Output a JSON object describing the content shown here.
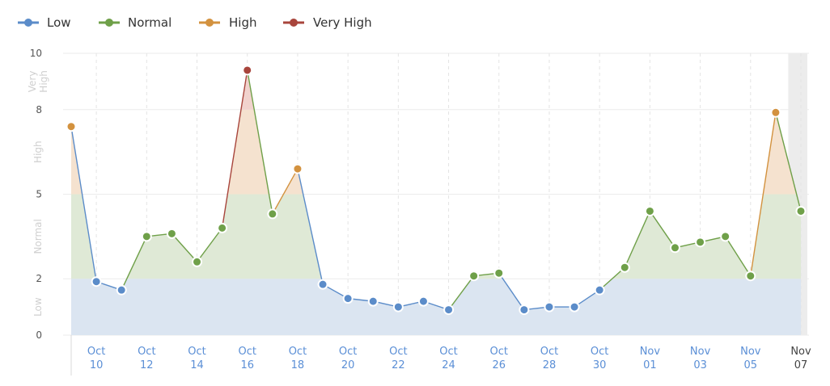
{
  "legend": [
    {
      "label": "Low",
      "color": "#5b8cc9"
    },
    {
      "label": "Normal",
      "color": "#6fa049"
    },
    {
      "label": "High",
      "color": "#d3923f"
    },
    {
      "label": "Very High",
      "color": "#a8453c"
    }
  ],
  "chart_data": {
    "type": "area",
    "ylim": [
      0,
      10
    ],
    "y_ticks": [
      "0",
      "2",
      "5",
      "8",
      "10"
    ],
    "bands": [
      {
        "name": "Low",
        "from": 0,
        "to": 2,
        "fill": "#dbe5f1"
      },
      {
        "name": "Normal",
        "from": 2,
        "to": 5,
        "fill": "#dfe9d6"
      },
      {
        "name": "High",
        "from": 5,
        "to": 8,
        "fill": "#f5e2cf"
      },
      {
        "name": "Very High",
        "from": 8,
        "to": 10,
        "fill": "#f1d2cd"
      }
    ],
    "band_labels": [
      "Low",
      "Normal",
      "High",
      "Very High"
    ],
    "x_ticks": [
      {
        "m": "Oct",
        "d": "10"
      },
      {
        "m": "Oct",
        "d": "12"
      },
      {
        "m": "Oct",
        "d": "14"
      },
      {
        "m": "Oct",
        "d": "16"
      },
      {
        "m": "Oct",
        "d": "18"
      },
      {
        "m": "Oct",
        "d": "20"
      },
      {
        "m": "Oct",
        "d": "22"
      },
      {
        "m": "Oct",
        "d": "24"
      },
      {
        "m": "Oct",
        "d": "26"
      },
      {
        "m": "Oct",
        "d": "28"
      },
      {
        "m": "Oct",
        "d": "30"
      },
      {
        "m": "Nov",
        "d": "01"
      },
      {
        "m": "Nov",
        "d": "03"
      },
      {
        "m": "Nov",
        "d": "05"
      },
      {
        "m": "Nov",
        "d": "07"
      }
    ],
    "x_start": "Oct 09",
    "x_end": "Nov 07",
    "highlighted_tick": "Nov 07",
    "highlight_region": [
      "Nov 06",
      "Nov 07"
    ],
    "points": [
      {
        "date": "Oct 09",
        "value": 7.4,
        "level": "High"
      },
      {
        "date": "Oct 10",
        "value": 1.9,
        "level": "Low"
      },
      {
        "date": "Oct 11",
        "value": 1.6,
        "level": "Low"
      },
      {
        "date": "Oct 12",
        "value": 3.5,
        "level": "Normal"
      },
      {
        "date": "Oct 13",
        "value": 3.6,
        "level": "Normal"
      },
      {
        "date": "Oct 14",
        "value": 2.6,
        "level": "Normal"
      },
      {
        "date": "Oct 15",
        "value": 3.8,
        "level": "Normal"
      },
      {
        "date": "Oct 16",
        "value": 9.4,
        "level": "Very High"
      },
      {
        "date": "Oct 17",
        "value": 4.3,
        "level": "Normal"
      },
      {
        "date": "Oct 18",
        "value": 5.9,
        "level": "High"
      },
      {
        "date": "Oct 19",
        "value": 1.8,
        "level": "Low"
      },
      {
        "date": "Oct 20",
        "value": 1.3,
        "level": "Low"
      },
      {
        "date": "Oct 21",
        "value": 1.2,
        "level": "Low"
      },
      {
        "date": "Oct 22",
        "value": 1.0,
        "level": "Low"
      },
      {
        "date": "Oct 23",
        "value": 1.2,
        "level": "Low"
      },
      {
        "date": "Oct 24",
        "value": 0.9,
        "level": "Low"
      },
      {
        "date": "Oct 25",
        "value": 2.1,
        "level": "Normal"
      },
      {
        "date": "Oct 26",
        "value": 2.2,
        "level": "Normal"
      },
      {
        "date": "Oct 27",
        "value": 0.9,
        "level": "Low"
      },
      {
        "date": "Oct 28",
        "value": 1.0,
        "level": "Low"
      },
      {
        "date": "Oct 29",
        "value": 1.0,
        "level": "Low"
      },
      {
        "date": "Oct 30",
        "value": 1.6,
        "level": "Low"
      },
      {
        "date": "Oct 31",
        "value": 2.4,
        "level": "Normal"
      },
      {
        "date": "Nov 01",
        "value": 4.4,
        "level": "Normal"
      },
      {
        "date": "Nov 02",
        "value": 3.1,
        "level": "Normal"
      },
      {
        "date": "Nov 03",
        "value": 3.3,
        "level": "Normal"
      },
      {
        "date": "Nov 04",
        "value": 3.5,
        "level": "Normal"
      },
      {
        "date": "Nov 05",
        "value": 2.1,
        "level": "Normal"
      },
      {
        "date": "Nov 06",
        "value": 7.9,
        "level": "High"
      },
      {
        "date": "Nov 07",
        "value": 4.4,
        "level": "Normal"
      }
    ]
  }
}
